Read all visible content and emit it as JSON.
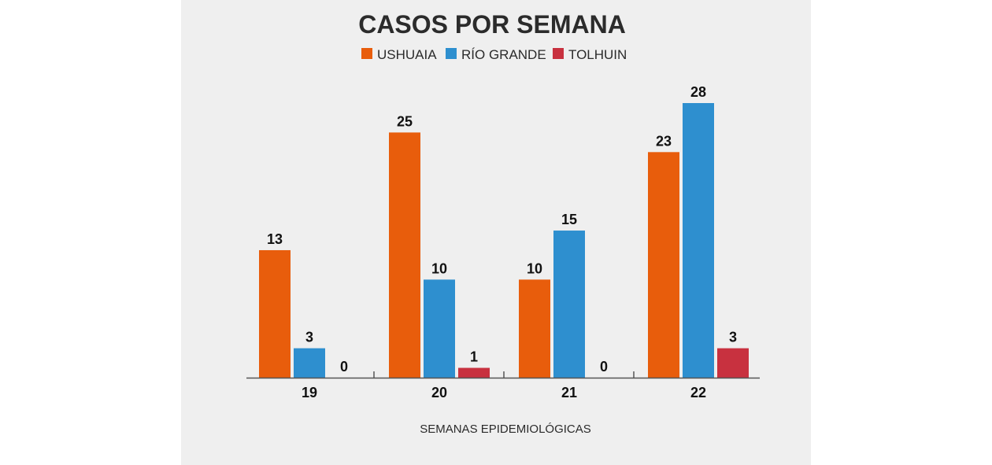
{
  "chart_data": {
    "type": "bar",
    "title": "CASOS POR SEMANA",
    "xlabel": "SEMANAS EPIDEMIOLÓGICAS",
    "ylabel": "",
    "categories": [
      "19",
      "20",
      "21",
      "22"
    ],
    "series": [
      {
        "name": "USHUAIA",
        "color": "#e85d0c",
        "values": [
          13,
          25,
          10,
          23
        ]
      },
      {
        "name": "RÍO GRANDE",
        "color": "#2e8fcf",
        "values": [
          3,
          10,
          15,
          28
        ]
      },
      {
        "name": "TOLHUIN",
        "color": "#c8313f",
        "values": [
          0,
          1,
          0,
          3
        ]
      }
    ],
    "ylim": [
      0,
      28
    ],
    "grid": false,
    "legend": "top-center",
    "data_labels": true
  }
}
